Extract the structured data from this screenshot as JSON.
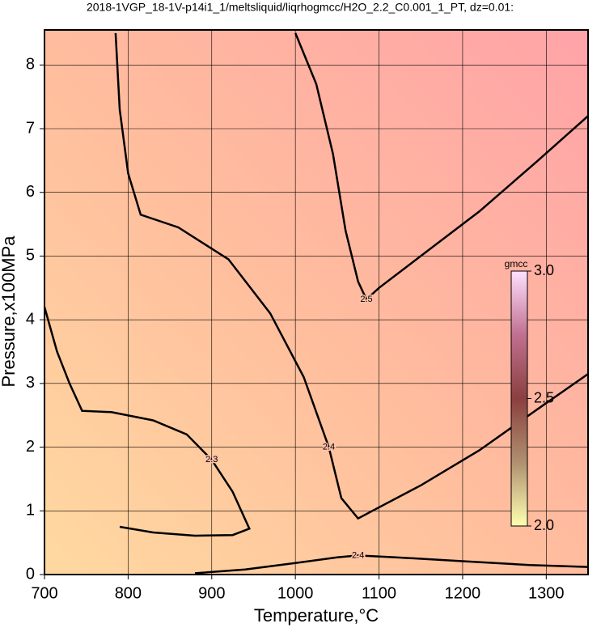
{
  "chart_data": {
    "type": "contour",
    "title": "2018-1VGP_18-1V-p14i1_1/meltsliquid/liqrhogmcc/H2O_2.2_C0.001_1_PT, dz=0.01:",
    "x_label": "Temperature,°C",
    "y_label": "Pressure,x100MPa",
    "xlim": [
      700,
      1350
    ],
    "ylim": [
      0,
      8.55
    ],
    "xticks": [
      700,
      800,
      900,
      1000,
      1100,
      1200,
      1300
    ],
    "yticks": [
      0,
      1,
      2,
      3,
      4,
      5,
      6,
      7,
      8
    ],
    "grid": true,
    "contours": [
      {
        "level": 2.3,
        "x": [
          700,
          715,
          730,
          745,
          780,
          830,
          870,
          900,
          925,
          945,
          925,
          880,
          830,
          790
        ],
        "y": [
          4.2,
          3.5,
          3.0,
          2.57,
          2.55,
          2.42,
          2.2,
          1.8,
          1.3,
          0.72,
          0.62,
          0.61,
          0.66,
          0.75
        ]
      },
      {
        "level": 2.4,
        "x": [
          785,
          790,
          800,
          815,
          860,
          920,
          970,
          1010,
          1040,
          1055,
          1075,
          1095,
          1150,
          1220,
          1290,
          1350
        ],
        "y": [
          8.5,
          7.3,
          6.3,
          5.65,
          5.45,
          4.95,
          4.1,
          3.1,
          2.0,
          1.2,
          0.88,
          1.02,
          1.4,
          1.95,
          2.6,
          3.15
        ]
      },
      {
        "level": 2.5,
        "x": [
          1000,
          1025,
          1045,
          1060,
          1075,
          1085,
          1100,
          1150,
          1220,
          1290,
          1350
        ],
        "y": [
          8.5,
          7.7,
          6.6,
          5.4,
          4.6,
          4.32,
          4.5,
          5.0,
          5.7,
          6.5,
          7.2
        ]
      },
      {
        "level": 2.4,
        "x": [
          880,
          940,
          1000,
          1050,
          1075,
          1120,
          1200,
          1280,
          1350
        ],
        "y": [
          0.02,
          0.08,
          0.18,
          0.27,
          0.3,
          0.27,
          0.21,
          0.15,
          0.12
        ]
      }
    ],
    "colorbar": {
      "label": "gmcc",
      "lim": [
        2.0,
        3.0
      ],
      "ticks": [
        {
          "value": 2.0,
          "label": "2.0"
        },
        2.5,
        {
          "value": 3.0,
          "label": "3.0"
        }
      ]
    }
  }
}
